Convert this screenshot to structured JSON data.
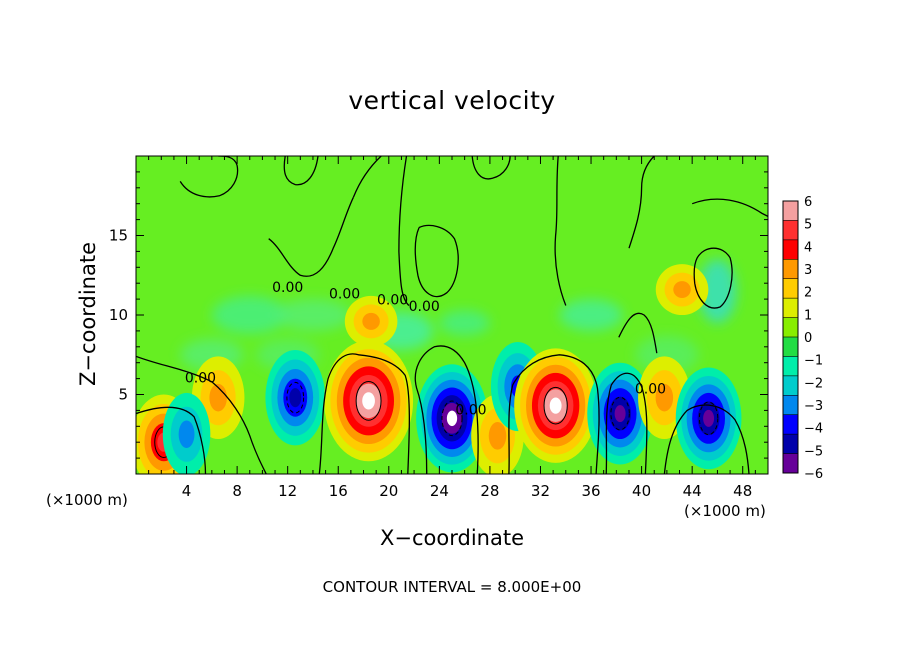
{
  "chart_data": {
    "type": "heatmap",
    "title": "vertical velocity",
    "xlabel": "X−coordinate",
    "ylabel": "Z−coordinate",
    "x_unit_left": "(×1000 m)",
    "x_unit_right": "(×1000 m)",
    "xlim": [
      0,
      50
    ],
    "ylim": [
      0,
      20
    ],
    "xticks": [
      4,
      8,
      12,
      16,
      20,
      24,
      28,
      32,
      36,
      40,
      44,
      48
    ],
    "yticks": [
      5,
      10,
      15
    ],
    "colorbar": {
      "ticks": [
        "6",
        "5",
        "4",
        "3",
        "2",
        "1",
        "0",
        "−1",
        "−2",
        "−3",
        "−4",
        "−5",
        "−6"
      ],
      "colors": [
        "#f4a0a0",
        "#ff3030",
        "#ff0000",
        "#ff9900",
        "#ffcc00",
        "#ddee00",
        "#88ee00",
        "#22dd44",
        "#00eeaa",
        "#00cccc",
        "#0088ee",
        "#0000ff",
        "#0000aa",
        "#660099"
      ]
    },
    "contour_interval_note": "CONTOUR INTERVAL = 8.000E+00",
    "contour_labels": [
      {
        "text": "0.00",
        "x": 12.0,
        "y": 11.7
      },
      {
        "text": "0.00",
        "x": 16.5,
        "y": 11.3
      },
      {
        "text": "0.00",
        "x": 20.3,
        "y": 10.9
      },
      {
        "text": "0.00",
        "x": 22.8,
        "y": 10.5
      },
      {
        "text": "0.00",
        "x": 5.1,
        "y": 6.0
      },
      {
        "text": "0.00",
        "x": 26.5,
        "y": 4.0
      },
      {
        "text": "0.00",
        "x": 40.7,
        "y": 5.3
      }
    ],
    "features": [
      {
        "sign": "positive",
        "x": 2.2,
        "z": 2.0,
        "peak": 8
      },
      {
        "sign": "positive",
        "x": 6.5,
        "z": 4.8,
        "peak": 4
      },
      {
        "sign": "negative",
        "x": 4.0,
        "z": 2.5,
        "peak": -4
      },
      {
        "sign": "negative",
        "x": 12.6,
        "z": 4.8,
        "peak": -8
      },
      {
        "sign": "positive",
        "x": 18.4,
        "z": 4.6,
        "peak": 16
      },
      {
        "sign": "positive",
        "x": 18.6,
        "z": 9.6,
        "peak": 4
      },
      {
        "sign": "negative",
        "x": 25.0,
        "z": 3.5,
        "peak": -12
      },
      {
        "sign": "positive",
        "x": 28.6,
        "z": 2.4,
        "peak": 4
      },
      {
        "sign": "negative",
        "x": 30.2,
        "z": 5.5,
        "peak": -6
      },
      {
        "sign": "positive",
        "x": 33.2,
        "z": 4.3,
        "peak": 14
      },
      {
        "sign": "negative",
        "x": 38.3,
        "z": 3.8,
        "peak": -10
      },
      {
        "sign": "positive",
        "x": 41.8,
        "z": 4.8,
        "peak": 4
      },
      {
        "sign": "positive",
        "x": 43.2,
        "z": 11.6,
        "peak": 4
      },
      {
        "sign": "negative",
        "x": 45.3,
        "z": 3.5,
        "peak": -10
      }
    ]
  }
}
